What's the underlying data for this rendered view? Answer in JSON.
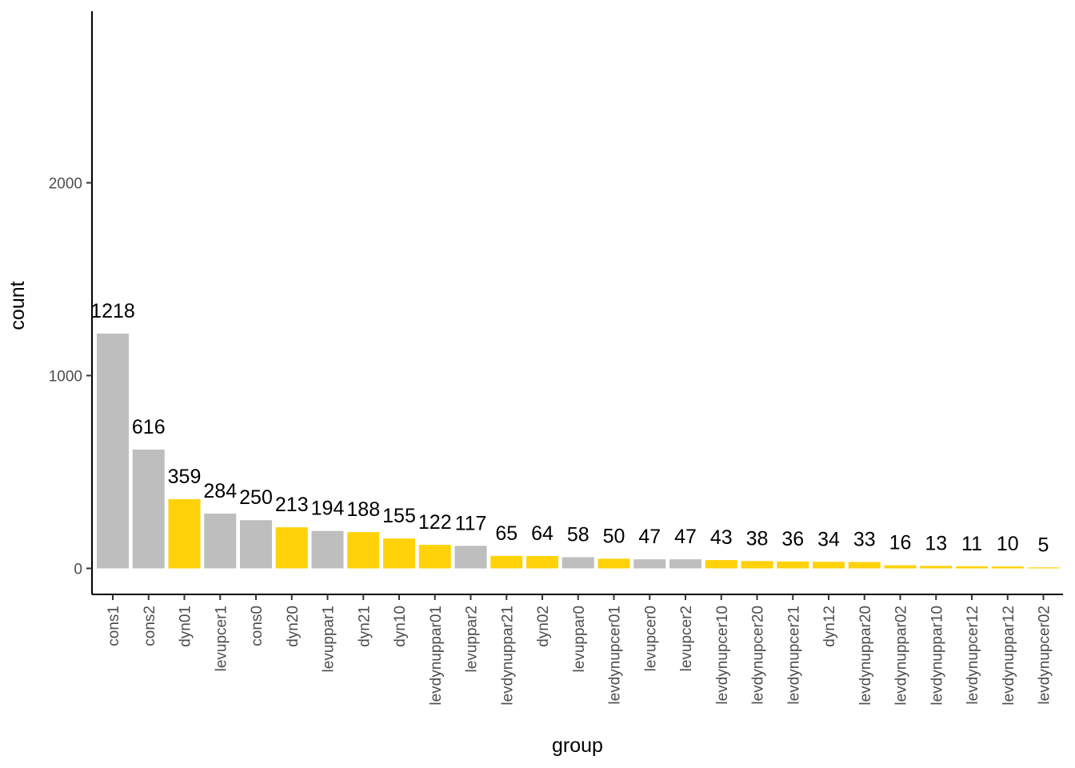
{
  "chart_data": {
    "type": "bar",
    "title": "",
    "xlabel": "group",
    "ylabel": "count",
    "ylim": [
      -135,
      2890
    ],
    "yticks": [
      0,
      1000,
      2000
    ],
    "grid": false,
    "legend": "none",
    "categories": [
      "cons1",
      "cons2",
      "dyn01",
      "levupcer1",
      "cons0",
      "dyn20",
      "levuppar1",
      "dyn21",
      "dyn10",
      "levdynuppar01",
      "levuppar2",
      "levdynuppar21",
      "dyn02",
      "levuppar0",
      "levdynupcer01",
      "levupcer0",
      "levupcer2",
      "levdynupcer10",
      "levdynupcer20",
      "levdynupcer21",
      "dyn12",
      "levdynuppar20",
      "levdynuppar02",
      "levdynuppar10",
      "levdynupcer12",
      "levdynuppar12",
      "levdynupcer02"
    ],
    "values": [
      1218,
      616,
      359,
      284,
      250,
      213,
      194,
      188,
      155,
      122,
      117,
      65,
      64,
      58,
      50,
      47,
      47,
      43,
      38,
      36,
      34,
      33,
      16,
      13,
      11,
      10,
      5
    ],
    "labels": [
      "1218",
      "616",
      "359",
      "284",
      "250",
      "213",
      "194",
      "188",
      "155",
      "122",
      "117",
      "65",
      "64",
      "58",
      "50",
      "47",
      "47",
      "43",
      "38",
      "36",
      "34",
      "33",
      "16",
      "13",
      "11",
      "10",
      "5"
    ],
    "colors": [
      "gray",
      "gray",
      "yellow",
      "gray",
      "gray",
      "yellow",
      "gray",
      "yellow",
      "yellow",
      "yellow",
      "gray",
      "yellow",
      "yellow",
      "gray",
      "yellow",
      "gray",
      "gray",
      "yellow",
      "yellow",
      "yellow",
      "yellow",
      "yellow",
      "yellow",
      "yellow",
      "yellow",
      "yellow",
      "yellow"
    ],
    "palette": {
      "gray": "#bebebe",
      "yellow": "#ffd20a"
    }
  }
}
